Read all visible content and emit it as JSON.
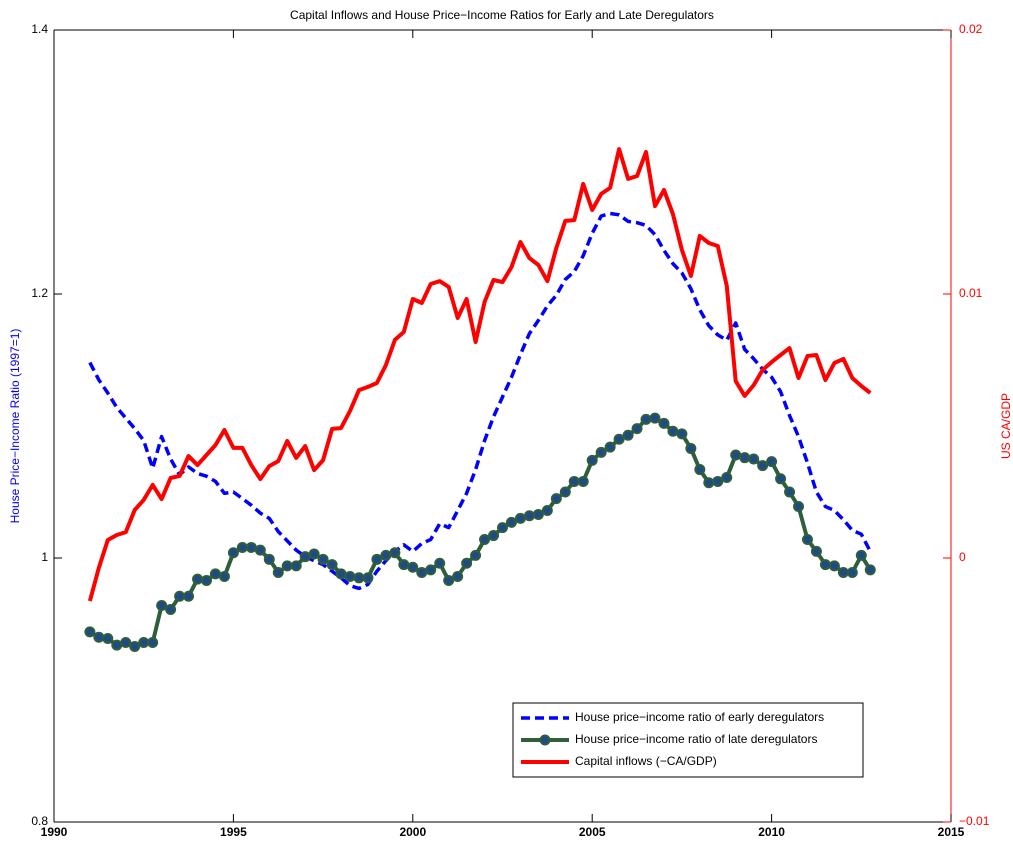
{
  "chart_data": {
    "type": "line",
    "title": "Capital Inflows and House Price−Income Ratios for Early and Late Deregulators",
    "ylabel": "House Price−Income Ratio (1997=1)",
    "y2label": "US CA/GDP",
    "x": [
      1991,
      1991.25,
      1991.5,
      1991.75,
      1992,
      1992.25,
      1992.5,
      1992.75,
      1993,
      1993.25,
      1993.5,
      1993.75,
      1994,
      1994.25,
      1994.5,
      1994.75,
      1995,
      1995.25,
      1995.5,
      1995.75,
      1996,
      1996.25,
      1996.5,
      1996.75,
      1997,
      1997.25,
      1997.5,
      1997.75,
      1998,
      1998.25,
      1998.5,
      1998.75,
      1999,
      1999.25,
      1999.5,
      1999.75,
      2000,
      2000.25,
      2000.5,
      2000.75,
      2001,
      2001.25,
      2001.5,
      2001.75,
      2002,
      2002.25,
      2002.5,
      2002.75,
      2003,
      2003.25,
      2003.5,
      2003.75,
      2004,
      2004.25,
      2004.5,
      2004.75,
      2005,
      2005.25,
      2005.5,
      2005.75,
      2006,
      2006.25,
      2006.5,
      2006.75,
      2007,
      2007.25,
      2007.5,
      2007.75,
      2008,
      2008.25,
      2008.5,
      2008.75,
      2009,
      2009.25,
      2009.5,
      2009.75,
      2010,
      2010.25,
      2010.5,
      2010.75,
      2011,
      2011.25,
      2011.5,
      2011.75,
      2012,
      2012.25,
      2012.5,
      2012.75
    ],
    "series": [
      {
        "name": "House price−income ratio of early deregulators",
        "color": "#0000ff",
        "dash": true,
        "values": [
          1.148,
          1.135,
          1.125,
          1.114,
          1.106,
          1.098,
          1.089,
          1.068,
          1.092,
          1.075,
          1.063,
          1.069,
          1.064,
          1.062,
          1.058,
          1.049,
          1.05,
          1.045,
          1.04,
          1.034,
          1.03,
          1.02,
          1.013,
          1.006,
          1.001,
          0.998,
          0.995,
          0.99,
          0.985,
          0.979,
          0.977,
          0.98,
          0.99,
          0.998,
          1.005,
          1.01,
          1.005,
          1.011,
          1.014,
          1.026,
          1.023,
          1.036,
          1.049,
          1.067,
          1.089,
          1.107,
          1.122,
          1.137,
          1.154,
          1.17,
          1.18,
          1.191,
          1.199,
          1.211,
          1.217,
          1.229,
          1.246,
          1.259,
          1.261,
          1.26,
          1.255,
          1.254,
          1.252,
          1.245,
          1.233,
          1.223,
          1.216,
          1.204,
          1.188,
          1.176,
          1.169,
          1.165,
          1.178,
          1.158,
          1.151,
          1.143,
          1.137,
          1.126,
          1.108,
          1.092,
          1.072,
          1.05,
          1.039,
          1.036,
          1.029,
          1.021,
          1.018,
          1.005
        ]
      },
      {
        "name": "House price−income ratio of late deregulators",
        "color": "#2f5f3a",
        "marker_color": "#1f4a8a",
        "values": [
          0.944,
          0.94,
          0.939,
          0.934,
          0.936,
          0.933,
          0.936,
          0.936,
          0.964,
          0.961,
          0.971,
          0.971,
          0.984,
          0.983,
          0.988,
          0.986,
          1.004,
          1.008,
          1.008,
          1.006,
          0.999,
          0.989,
          0.994,
          0.994,
          1.001,
          1.003,
          0.999,
          0.995,
          0.988,
          0.986,
          0.985,
          0.985,
          0.999,
          1.002,
          1.004,
          0.995,
          0.993,
          0.989,
          0.991,
          0.996,
          0.983,
          0.986,
          0.996,
          1.002,
          1.014,
          1.017,
          1.023,
          1.027,
          1.03,
          1.032,
          1.033,
          1.036,
          1.045,
          1.05,
          1.058,
          1.058,
          1.074,
          1.08,
          1.084,
          1.09,
          1.093,
          1.098,
          1.105,
          1.106,
          1.102,
          1.096,
          1.094,
          1.083,
          1.067,
          1.057,
          1.058,
          1.061,
          1.078,
          1.076,
          1.075,
          1.07,
          1.073,
          1.06,
          1.05,
          1.039,
          1.014,
          1.005,
          0.995,
          0.994,
          0.989,
          0.989,
          1.002,
          0.991
        ]
      },
      {
        "name": "Capital inflows (−CA/GDP)",
        "color": "#ff0000",
        "axis": "y2",
        "values": [
          -0.00163,
          -0.00038,
          0.00068,
          0.00087,
          0.00098,
          0.00182,
          0.0022,
          0.00277,
          0.00223,
          0.00303,
          0.00311,
          0.00386,
          0.00352,
          0.0039,
          0.00428,
          0.00485,
          0.00417,
          0.00417,
          0.00352,
          0.00299,
          0.00348,
          0.00367,
          0.00443,
          0.00379,
          0.00424,
          0.00333,
          0.00371,
          0.00489,
          0.00492,
          0.00557,
          0.00636,
          0.00648,
          0.00663,
          0.00731,
          0.00826,
          0.00856,
          0.00981,
          0.00966,
          0.01038,
          0.01049,
          0.01027,
          0.00909,
          0.00981,
          0.00818,
          0.0097,
          0.01053,
          0.01045,
          0.01102,
          0.01197,
          0.01136,
          0.0111,
          0.01049,
          0.01174,
          0.01277,
          0.0128,
          0.01417,
          0.01318,
          0.01379,
          0.01402,
          0.01549,
          0.01436,
          0.01447,
          0.01538,
          0.01333,
          0.01394,
          0.01303,
          0.01167,
          0.01068,
          0.0122,
          0.01193,
          0.01182,
          0.0103,
          0.0067,
          0.00614,
          0.00655,
          0.00712,
          0.00742,
          0.00769,
          0.00795,
          0.00682,
          0.00765,
          0.00769,
          0.00674,
          0.00739,
          0.00754,
          0.00682,
          0.00652,
          0.00625
        ]
      }
    ],
    "xlim": [
      1990,
      2015
    ],
    "xticks": [
      1990,
      1995,
      2000,
      2005,
      2010,
      2015
    ],
    "ylim": [
      0.8,
      1.4
    ],
    "yticks": [
      0.8,
      1,
      1.2,
      1.4
    ],
    "y2lim": [
      -0.01,
      0.02
    ],
    "y2ticks": [
      {
        "value": -0.01,
        "label": "−0.01"
      },
      0,
      0.01,
      0.02
    ],
    "y2color": "#ff0000",
    "ylabel_color": "#0000ff",
    "legend": "lower right"
  }
}
